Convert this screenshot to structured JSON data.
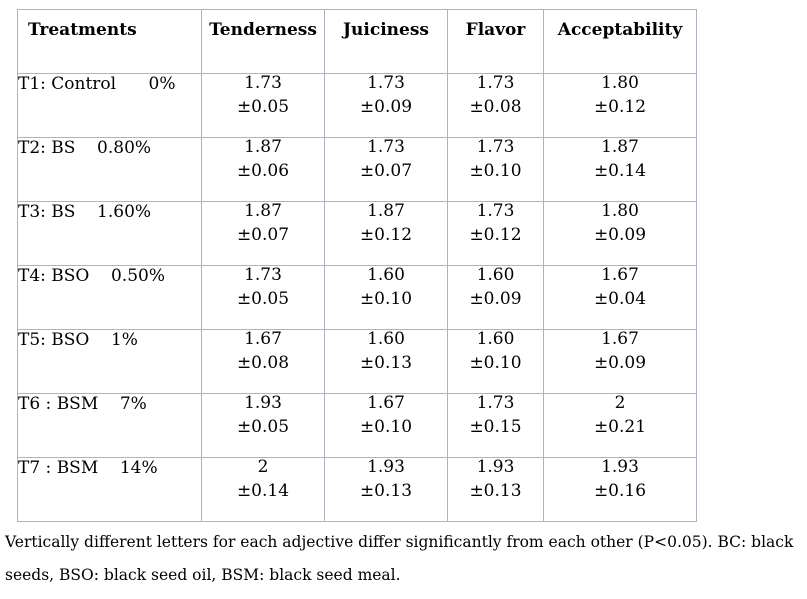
{
  "table": {
    "headers": [
      "Treatments",
      "Tenderness",
      "Juiciness",
      "Flavor",
      "Acceptability"
    ],
    "rows": [
      {
        "treatment": "T1: Control      0%",
        "values": [
          [
            "1.73",
            "±0.05"
          ],
          [
            "1.73",
            "±0.09"
          ],
          [
            "1.73",
            "±0.08"
          ],
          [
            "1.80",
            "±0.12"
          ]
        ]
      },
      {
        "treatment": "T2: BS    0.80%",
        "values": [
          [
            "1.87",
            "±0.06"
          ],
          [
            "1.73",
            "±0.07"
          ],
          [
            "1.73",
            "±0.10"
          ],
          [
            "1.87",
            "±0.14"
          ]
        ]
      },
      {
        "treatment": "T3: BS    1.60%",
        "values": [
          [
            "1.87",
            "±0.07"
          ],
          [
            "1.87",
            "±0.12"
          ],
          [
            "1.73",
            "±0.12"
          ],
          [
            "1.80",
            "±0.09"
          ]
        ]
      },
      {
        "treatment": "T4: BSO    0.50%",
        "values": [
          [
            "1.73",
            "±0.05"
          ],
          [
            "1.60",
            "±0.10"
          ],
          [
            "1.60",
            "±0.09"
          ],
          [
            "1.67",
            "±0.04"
          ]
        ]
      },
      {
        "treatment": "T5: BSO    1%",
        "values": [
          [
            "1.67",
            "±0.08"
          ],
          [
            "1.60",
            "±0.13"
          ],
          [
            "1.60",
            "±0.10"
          ],
          [
            "1.67",
            "±0.09"
          ]
        ]
      },
      {
        "treatment": "T6 : BSM    7%",
        "values": [
          [
            "1.93",
            "±0.05"
          ],
          [
            "1.67",
            "±0.10"
          ],
          [
            "1.73",
            "±0.15"
          ],
          [
            "2",
            "±0.21"
          ]
        ]
      },
      {
        "treatment": "T7 : BSM    14%",
        "values": [
          [
            "2",
            "±0.14"
          ],
          [
            "1.93",
            "±0.13"
          ],
          [
            "1.93",
            "±0.13"
          ],
          [
            "1.93",
            "±0.16"
          ]
        ]
      }
    ]
  },
  "footnote": "Vertically different letters for each adjective differ significantly from each other (P<0.05). BC: black seeds, BSO: black seed oil, BSM: black seed meal."
}
